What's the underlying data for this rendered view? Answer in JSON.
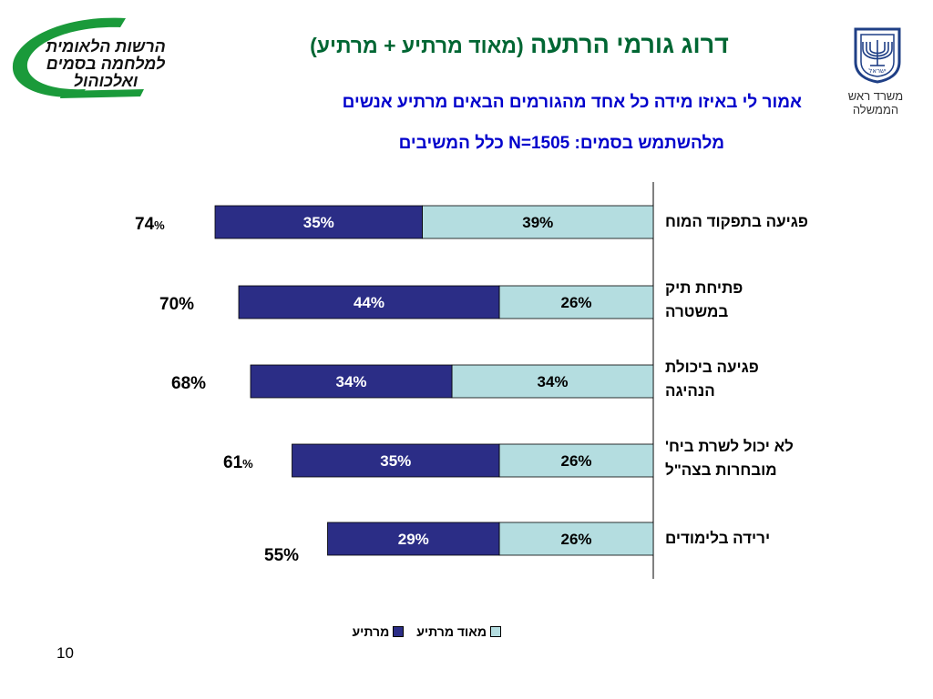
{
  "header": {
    "title_main": "דרוג גורמי הרתעה",
    "title_paren": "(מאוד מרתיע + מרתיע)",
    "subtitle_line1": "אמור לי באיזו מידה כל אחד מהגורמים הבאים מרתיע אנשים",
    "subtitle_line2": "מלהשתמש בסמים:  N=1505 כלל המשיבים"
  },
  "logos": {
    "left_text_lines": [
      "הרשות הלאומית",
      "למלחמה בסמים",
      "ואלכוהול"
    ],
    "left_color": "#1a9a3a",
    "right_caption": "משרד ראש הממשלה",
    "right_emblem_text": "ישראל",
    "right_color": "#1f3f86"
  },
  "chart_data": {
    "type": "bar",
    "orientation": "horizontal-stacked",
    "categories": [
      [
        "פגיעה בתפקוד המוח"
      ],
      [
        "פתיחת תיק",
        "במשטרה"
      ],
      [
        "פגיעה ביכולת",
        "הנהיגה"
      ],
      [
        "לא יכול לשרת ביח'",
        "מובחרות בצה\"ל"
      ],
      [
        "ירידה בלימודים"
      ]
    ],
    "series": [
      {
        "name": "מאוד מרתיע",
        "color": "#b4dde0",
        "values": [
          39,
          26,
          34,
          26,
          26
        ],
        "labels": [
          "39%",
          "26%",
          "34%",
          "26%",
          "26%"
        ]
      },
      {
        "name": "מרתיע",
        "color": "#2b2d86",
        "values": [
          35,
          44,
          34,
          35,
          29
        ],
        "labels": [
          "35%",
          "44%",
          "34%",
          "35%",
          "29%"
        ]
      }
    ],
    "totals": [
      {
        "num": "74",
        "pct": "%"
      },
      {
        "num": "70%",
        "pct": ""
      },
      {
        "num": "68%",
        "pct": ""
      },
      {
        "num": "61",
        "pct": "%"
      },
      {
        "num": "55%",
        "pct": ""
      }
    ],
    "legend_position": "bottom",
    "xlim": [
      0,
      100
    ]
  },
  "footer": {
    "page_number": "10"
  }
}
